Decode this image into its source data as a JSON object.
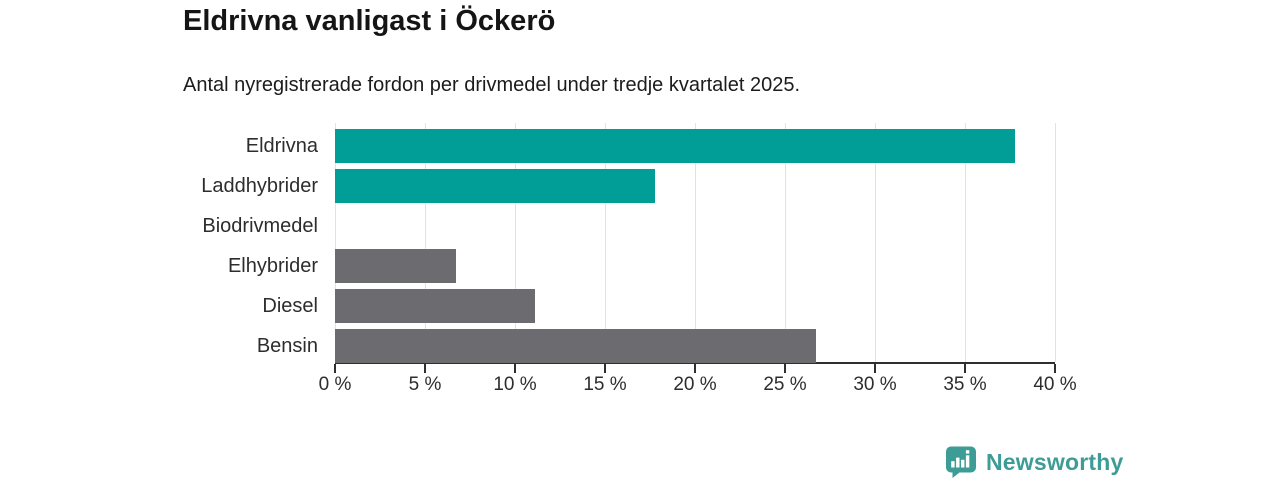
{
  "header": {
    "title": "Eldrivna vanligast i Öckerö",
    "subtitle": "Antal nyregistrerade fordon per drivmedel under tredje kvartalet 2025."
  },
  "chart_data": {
    "type": "bar",
    "orientation": "horizontal",
    "title": "Eldrivna vanligast i Öckerö",
    "subtitle": "Antal nyregistrerade fordon per drivmedel under tredje kvartalet 2025.",
    "categories": [
      "Eldrivna",
      "Laddhybrider",
      "Biodrivmedel",
      "Elhybrider",
      "Diesel",
      "Bensin"
    ],
    "values": [
      37.8,
      17.8,
      0,
      6.7,
      11.1,
      26.7
    ],
    "unit": "%",
    "xlabel": "",
    "ylabel": "",
    "xlim": [
      0,
      40
    ],
    "x_ticks": [
      0,
      5,
      10,
      15,
      20,
      25,
      30,
      35,
      40
    ],
    "x_tick_labels": [
      "0 %",
      "5 %",
      "10 %",
      "15 %",
      "20 %",
      "25 %",
      "30 %",
      "35 %",
      "40 %"
    ],
    "bar_colors": [
      "#009e96",
      "#009e96",
      "#6b6b70",
      "#6b6b70",
      "#6b6b70",
      "#6b6b70"
    ],
    "grid": true,
    "legend_position": "none"
  },
  "colors": {
    "accent_teal": "#009e96",
    "bar_gray": "#6b6b70",
    "gridline": "#e2e2e2",
    "axis": "#2f2f2f",
    "brand_teal": "#3d9c95"
  },
  "footer": {
    "brand": "Newsworthy",
    "logo_icon": "newsworthy-bar-chart-speech-bubble-icon"
  }
}
